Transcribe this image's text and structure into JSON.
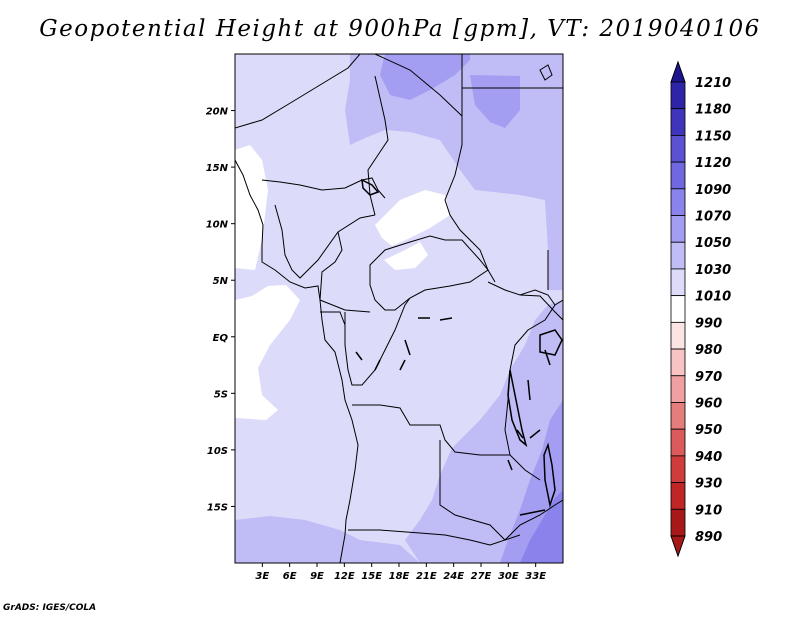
{
  "title": "Geopotential Height at 900hPa [gpm], VT: 2019040106",
  "credit": "GrADS: IGES/COLA",
  "colors": {
    "c1010": "#dcdcfa",
    "c1030": "#bfbcf6",
    "c1050": "#a39ef1",
    "c1070": "#8a83ec",
    "frame": "#000000"
  },
  "map": {
    "lon_range": [
      0,
      36
    ],
    "lat_range": [
      -20,
      25
    ],
    "lat_ticks": [
      {
        "lat": 20,
        "label": "20N"
      },
      {
        "lat": 15,
        "label": "15N"
      },
      {
        "lat": 10,
        "label": "10N"
      },
      {
        "lat": 5,
        "label": "5N"
      },
      {
        "lat": 0,
        "label": "EQ"
      },
      {
        "lat": -5,
        "label": "5S"
      },
      {
        "lat": -10,
        "label": "10S"
      },
      {
        "lat": -15,
        "label": "15S"
      }
    ],
    "lon_ticks": [
      {
        "lon": 3,
        "label": "3E"
      },
      {
        "lon": 6,
        "label": "6E"
      },
      {
        "lon": 9,
        "label": "9E"
      },
      {
        "lon": 12,
        "label": "12E"
      },
      {
        "lon": 15,
        "label": "15E"
      },
      {
        "lon": 18,
        "label": "18E"
      },
      {
        "lon": 21,
        "label": "21E"
      },
      {
        "lon": 24,
        "label": "24E"
      },
      {
        "lon": 27,
        "label": "27E"
      },
      {
        "lon": 30,
        "label": "30E"
      },
      {
        "lon": 33,
        "label": "33E"
      }
    ]
  },
  "colorbar": {
    "levels": [
      "1210",
      "1180",
      "1150",
      "1120",
      "1090",
      "1070",
      "1050",
      "1030",
      "1010",
      "990",
      "980",
      "970",
      "960",
      "950",
      "940",
      "930",
      "910",
      "890"
    ],
    "colors": [
      "#1e1690",
      "#2d24a8",
      "#3f35bd",
      "#5a52d2",
      "#7068e0",
      "#8a83ec",
      "#a39ef1",
      "#bfbcf6",
      "#dcdcfa",
      "#ffffff",
      "#fde4e4",
      "#f8c3c3",
      "#f0a0a0",
      "#e67d7d",
      "#dc5a5a",
      "#d03c3c",
      "#c02626",
      "#a81818"
    ]
  }
}
